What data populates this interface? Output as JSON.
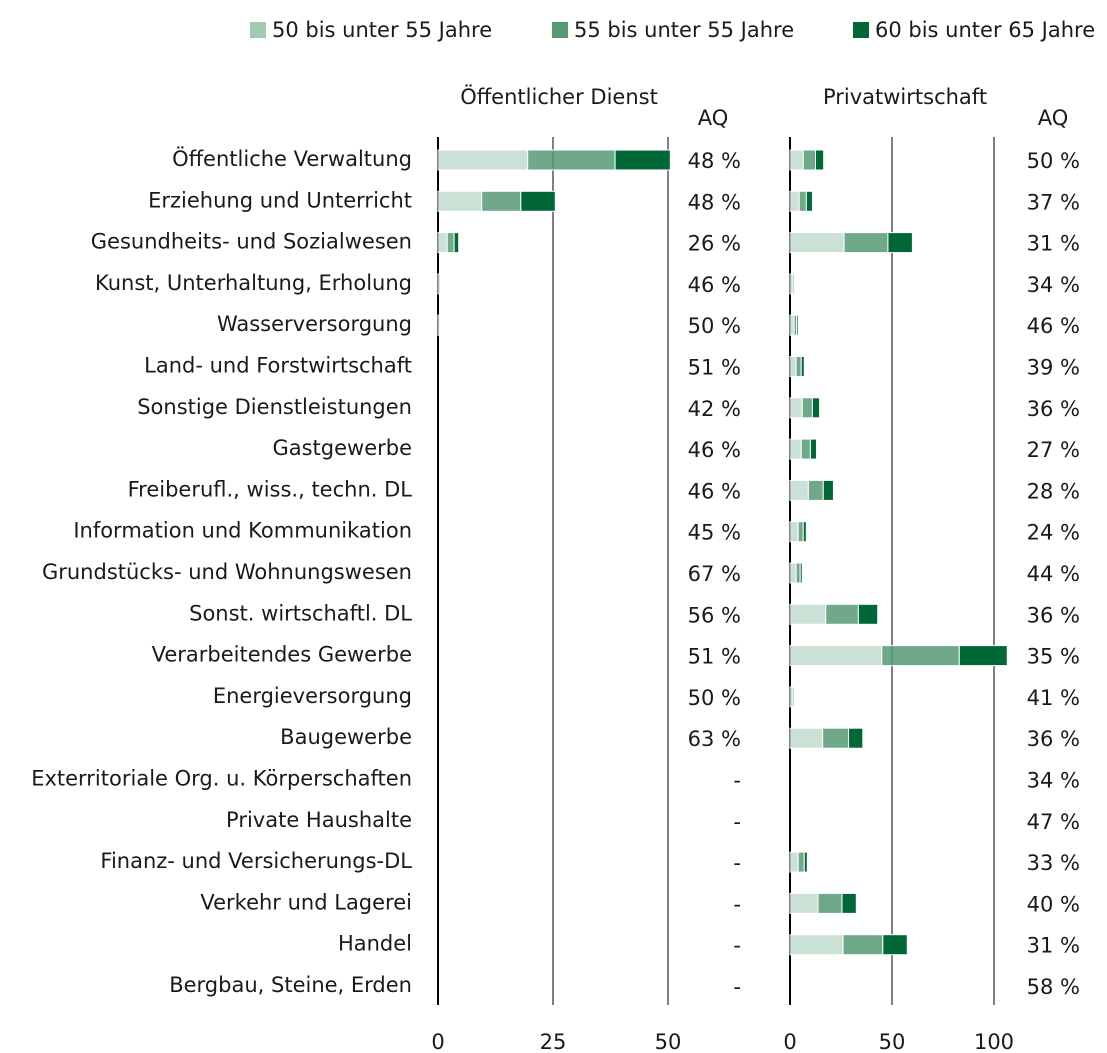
{
  "chart_data": {
    "type": "bar",
    "orientation": "horizontal",
    "stacked": true,
    "categories": [
      "Öffentliche Verwaltung",
      "Erziehung und Unterricht",
      "Gesundheits- und Sozialwesen",
      "Kunst, Unterhaltung, Erholung",
      "Wasserversorgung",
      "Land- und Forstwirtschaft",
      "Sonstige Dienstleistungen",
      "Gastgewerbe",
      "Freiberufl., wiss., techn. DL",
      "Information und Kommunikation",
      "Grundstücks- und Wohnungswesen",
      "Sonst. wirtschaftl. DL",
      "Verarbeitendes Gewerbe",
      "Energieversorgung",
      "Baugewerbe",
      "Exterritoriale Org. u. Körperschaften",
      "Private Haushalte",
      "Finanz- und Versicherungs-DL",
      "Verkehr und Lagerei",
      "Handel",
      "Bergbau, Steine, Erden"
    ],
    "series": [
      {
        "name": "50 bis unter 55 Jahre",
        "color": "#a3c9b3"
      },
      {
        "name": "55 bis unter 55 Jahre",
        "color": "#579a76"
      },
      {
        "name": "60 bis unter 65 Jahre",
        "color": "#006837"
      }
    ],
    "panels": [
      {
        "title": "Öffentlicher Dienst",
        "xlim": [
          0,
          50
        ],
        "xticks": [
          0,
          25,
          50
        ],
        "aq_header": "AQ",
        "values": [
          [
            19.5,
            9.5,
            2,
            0.5,
            0.4,
            0,
            0,
            0,
            0,
            0,
            0,
            0,
            0,
            0,
            0,
            null,
            null,
            null,
            null,
            null,
            null
          ],
          [
            19,
            8.5,
            1.5,
            0.2,
            0.2,
            0,
            0,
            0,
            0,
            0,
            0,
            0,
            0,
            0,
            0,
            null,
            null,
            null,
            null,
            null,
            null
          ],
          [
            12,
            7.5,
            1,
            0.1,
            0.1,
            0,
            0,
            0,
            0,
            0,
            0,
            0,
            0,
            0,
            0,
            null,
            null,
            null,
            null,
            null,
            null
          ]
        ],
        "aq": [
          "48 %",
          "48 %",
          "26 %",
          "46 %",
          "50 %",
          "51 %",
          "42 %",
          "46 %",
          "46 %",
          "45 %",
          "67 %",
          "56 %",
          "51 %",
          "50 %",
          "63 %",
          "-",
          "-",
          "-",
          "-",
          "-",
          "-"
        ]
      },
      {
        "title": "Privatwirtschaft",
        "xlim": [
          0,
          100
        ],
        "xticks": [
          0,
          50,
          100
        ],
        "aq_header": "AQ",
        "values": [
          [
            6.5,
            4.5,
            26.5,
            1.5,
            2,
            3,
            6,
            5.5,
            9,
            4,
            3,
            17.5,
            45,
            1.5,
            16,
            0,
            0,
            4,
            13.7,
            26,
            0
          ],
          [
            6,
            3.5,
            21.5,
            0.7,
            1.3,
            2.5,
            5,
            4.5,
            7.3,
            2.5,
            2,
            16,
            38,
            0.7,
            12.7,
            0,
            0,
            3,
            11.8,
            19.5,
            0
          ],
          [
            4,
            3,
            12,
            0.5,
            0.8,
            1.5,
            3.5,
            3,
            5,
            1.5,
            1,
            9.5,
            23.5,
            0.5,
            7,
            0,
            0,
            1.5,
            7,
            12,
            0
          ]
        ],
        "aq": [
          "50 %",
          "37 %",
          "31 %",
          "34 %",
          "46 %",
          "39 %",
          "36 %",
          "27 %",
          "28 %",
          "24 %",
          "44 %",
          "36 %",
          "35 %",
          "41 %",
          "36 %",
          "34 %",
          "47 %",
          "33 %",
          "40 %",
          "31 %",
          "58 %"
        ]
      }
    ]
  }
}
